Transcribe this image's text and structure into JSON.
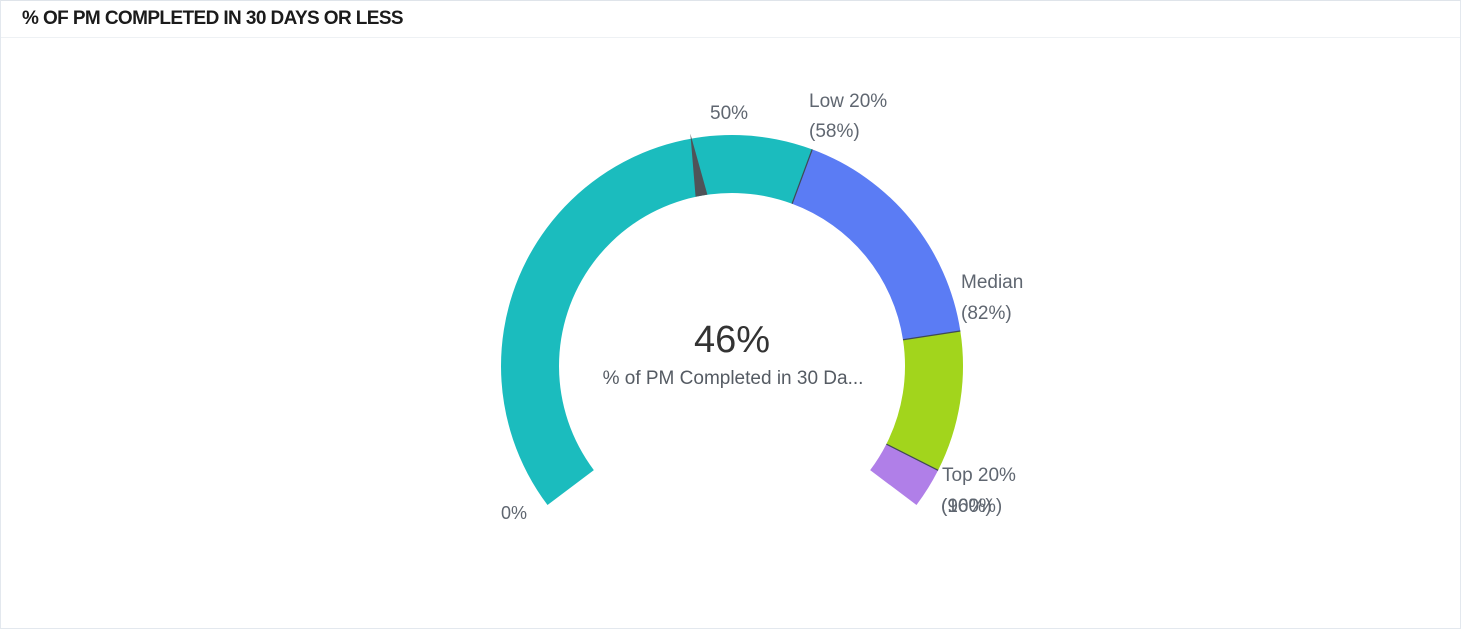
{
  "widget": {
    "title": "% OF PM COMPLETED IN 30 DAYS OR LESS"
  },
  "chart_data": {
    "type": "gauge",
    "title": "% OF PM COMPLETED IN 30 DAYS OR LESS",
    "value": 46,
    "value_label": "46%",
    "caption": "% of PM Completed in 30 Da...",
    "min": 0,
    "max": 100,
    "min_label": "0%",
    "midpoint_label": "50%",
    "bands": [
      {
        "from": 0,
        "to": 58,
        "color": "#1bbcbe"
      },
      {
        "from": 58,
        "to": 82,
        "color": "#5b7cf4"
      },
      {
        "from": 82,
        "to": 96,
        "color": "#a2d51c"
      },
      {
        "from": 96,
        "to": 100,
        "color": "#b07fe8"
      }
    ],
    "thresholds": [
      {
        "value": 58,
        "name": "Low 20%",
        "value_text": "(58%)"
      },
      {
        "value": 82,
        "name": "Median",
        "value_text": "(82%)"
      },
      {
        "value": 96,
        "name": "Top 20%",
        "value_text": "(96%)"
      }
    ],
    "end_labels": [
      "(100%)"
    ],
    "needle_color": "#4f5358"
  }
}
